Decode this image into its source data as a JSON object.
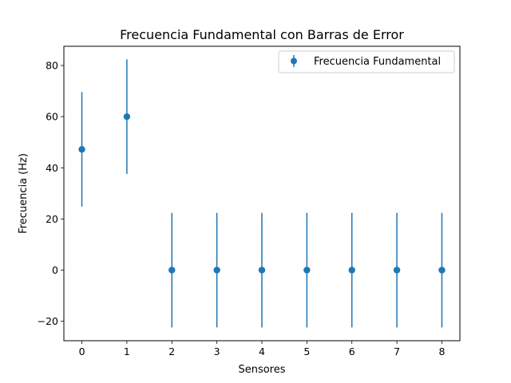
{
  "chart_data": {
    "type": "scatter",
    "title": "Frecuencia Fundamental con Barras de Error",
    "xlabel": "Sensores",
    "ylabel": "Frecuencia (Hz)",
    "x": [
      0,
      1,
      2,
      3,
      4,
      5,
      6,
      7,
      8
    ],
    "xticks": [
      0,
      1,
      2,
      3,
      4,
      5,
      6,
      7,
      8
    ],
    "yticks": [
      -20,
      0,
      20,
      40,
      60,
      80
    ],
    "xlim": [
      -0.4,
      8.4
    ],
    "ylim": [
      -27.6,
      87.5
    ],
    "grid": false,
    "legend_position": "top-right",
    "series": [
      {
        "name": "Frecuencia Fundamental",
        "color": "#1f77b4",
        "values": [
          47.2,
          60.0,
          0,
          0,
          0,
          0,
          0,
          0,
          0
        ],
        "error": [
          22.4,
          22.4,
          22.4,
          22.4,
          22.4,
          22.4,
          22.4,
          22.4,
          22.4
        ]
      }
    ]
  }
}
